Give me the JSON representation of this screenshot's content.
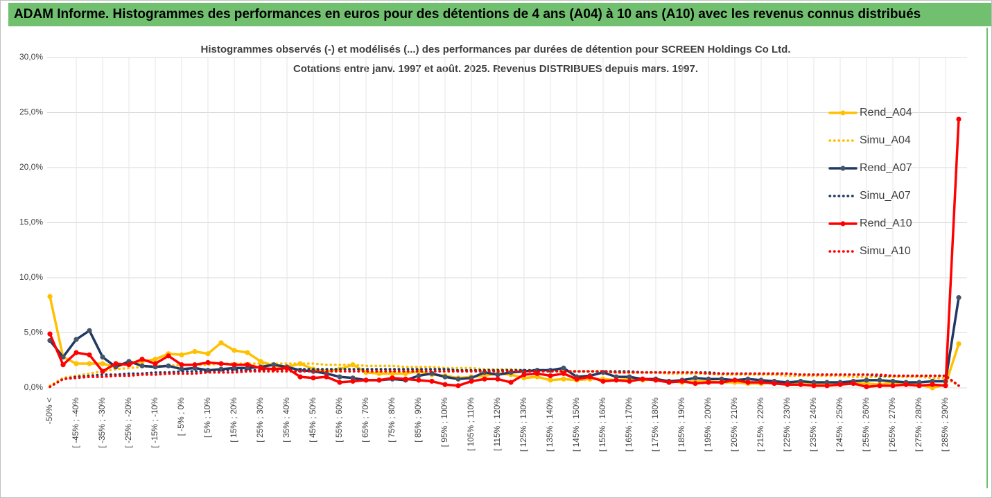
{
  "chart_data": {
    "type": "line",
    "title": "ADAM Informe. Histogrammes des performances en euros pour des détentions de 4 ans (A04) à 10 ans (A10) avec les revenus connus distribués",
    "subtitle": [
      "Histogrammes observés (-) et modélisés (...) des performances par durées de détention pour SCREEN Holdings Co Ltd.",
      "Cotations entre janv. 1997 et août. 2025. Revenus DISTRIBUES depuis mars. 1997."
    ],
    "categories": [
      "-50% <",
      null,
      "[ -45% ; -40%",
      null,
      "[ -35% ; -30%",
      null,
      "[ -25% ; -20%",
      null,
      "[ -15% ; -10%",
      null,
      "[ -5% ; 0%",
      null,
      "[ 5% ; 10%",
      null,
      "[ 15% ; 20%",
      null,
      "[ 25% ; 30%",
      null,
      "[ 35% ; 40%",
      null,
      "[ 45% ; 50%",
      null,
      "[ 55% ; 60%",
      null,
      "[ 65% ; 70%",
      null,
      "[ 75% ; 80%",
      null,
      "[ 85% ; 90%",
      null,
      "[ 95% ; 100%",
      null,
      "[ 105% ; 110%",
      null,
      "[ 115% ; 120%",
      null,
      "[ 125% ; 130%",
      null,
      "[ 135% ; 140%",
      null,
      "[ 145% ; 150%",
      null,
      "[ 155% ; 160%",
      null,
      "[ 165% ; 170%",
      null,
      "[ 175% ; 180%",
      null,
      "[ 185% ; 190%",
      null,
      "[ 195% ; 200%",
      null,
      "[ 205% ; 210%",
      null,
      "[ 215% ; 220%",
      null,
      "[ 225% ; 230%",
      null,
      "[ 235% ; 240%",
      null,
      "[ 245% ; 250%",
      null,
      "[ 255% ; 260%",
      null,
      "[ 265% ; 270%",
      null,
      "[ 275% ; 280%",
      null,
      "[ 285% ; 290%",
      null
    ],
    "series": [
      {
        "name": "Rend_A04",
        "color": "#ffc000",
        "style": "solid",
        "values": [
          8.3,
          2.8,
          2.2,
          2.2,
          2.2,
          1.9,
          2.3,
          2.4,
          2.6,
          3.1,
          3.0,
          3.3,
          3.1,
          4.1,
          3.4,
          3.2,
          2.4,
          2.0,
          1.9,
          2.2,
          1.7,
          1.5,
          1.7,
          2.1,
          1.4,
          1.3,
          1.3,
          1.3,
          1.5,
          1.2,
          1.1,
          0.9,
          1.0,
          1.1,
          1.3,
          1.2,
          0.9,
          1.0,
          0.7,
          0.8,
          0.7,
          0.8,
          0.8,
          0.7,
          0.8,
          0.7,
          0.8,
          0.6,
          0.5,
          0.6,
          0.6,
          0.5,
          0.5,
          0.4,
          0.4,
          0.5,
          0.4,
          0.4,
          0.3,
          0.3,
          0.3,
          0.4,
          0.4,
          0.3,
          0.5,
          0.3,
          0.3,
          0.0,
          0.3,
          4.0
        ]
      },
      {
        "name": "Simu_A04",
        "color": "#ffc000",
        "style": "dotted",
        "values": [
          0.2,
          0.9,
          1.1,
          1.3,
          1.5,
          1.7,
          1.8,
          1.9,
          2.0,
          2.0,
          2.1,
          2.1,
          2.1,
          2.2,
          2.2,
          2.2,
          2.2,
          2.2,
          2.2,
          2.2,
          2.2,
          2.1,
          2.1,
          2.1,
          2.0,
          2.0,
          2.0,
          1.9,
          1.9,
          1.9,
          1.8,
          1.8,
          1.8,
          1.7,
          1.7,
          1.7,
          1.6,
          1.6,
          1.6,
          1.5,
          1.5,
          1.5,
          1.5,
          1.4,
          1.4,
          1.4,
          1.4,
          1.3,
          1.3,
          1.3,
          1.3,
          1.2,
          1.2,
          1.2,
          1.2,
          1.2,
          1.1,
          1.1,
          1.1,
          1.1,
          1.1,
          1.0,
          1.0,
          1.0,
          1.0,
          1.0,
          1.0,
          0.9,
          0.9,
          0.2
        ]
      },
      {
        "name": "Rend_A07",
        "color": "#1f3864",
        "style": "solid",
        "values": [
          4.3,
          2.8,
          4.4,
          5.2,
          2.8,
          1.9,
          2.4,
          2.0,
          1.9,
          2.0,
          1.7,
          1.8,
          1.6,
          1.7,
          1.8,
          1.8,
          1.9,
          2.1,
          1.9,
          1.6,
          1.5,
          1.3,
          1.0,
          0.9,
          0.7,
          0.7,
          0.8,
          0.7,
          1.1,
          1.3,
          1.0,
          0.8,
          0.9,
          1.4,
          1.2,
          1.4,
          1.5,
          1.6,
          1.6,
          1.8,
          1.0,
          1.1,
          1.4,
          1.0,
          1.0,
          0.8,
          0.8,
          0.6,
          0.7,
          0.9,
          0.8,
          0.8,
          0.7,
          0.8,
          0.7,
          0.6,
          0.5,
          0.6,
          0.5,
          0.5,
          0.5,
          0.6,
          0.7,
          0.7,
          0.6,
          0.5,
          0.5,
          0.6,
          0.6,
          8.2
        ]
      },
      {
        "name": "Simu_A07",
        "color": "#1f3864",
        "style": "dotted",
        "values": [
          0.1,
          0.8,
          1.0,
          1.1,
          1.2,
          1.2,
          1.3,
          1.3,
          1.4,
          1.4,
          1.5,
          1.5,
          1.5,
          1.6,
          1.6,
          1.6,
          1.6,
          1.7,
          1.7,
          1.7,
          1.7,
          1.7,
          1.7,
          1.7,
          1.7,
          1.7,
          1.7,
          1.7,
          1.7,
          1.7,
          1.7,
          1.6,
          1.6,
          1.6,
          1.6,
          1.6,
          1.6,
          1.6,
          1.6,
          1.5,
          1.5,
          1.5,
          1.5,
          1.5,
          1.5,
          1.4,
          1.4,
          1.4,
          1.4,
          1.4,
          1.4,
          1.3,
          1.3,
          1.3,
          1.3,
          1.3,
          1.3,
          1.2,
          1.2,
          1.2,
          1.2,
          1.2,
          1.2,
          1.1,
          1.1,
          1.1,
          1.1,
          1.1,
          1.1,
          0.2
        ]
      },
      {
        "name": "Rend_A10",
        "color": "#ff0000",
        "style": "solid",
        "values": [
          4.9,
          2.1,
          3.2,
          3.0,
          1.5,
          2.2,
          2.1,
          2.6,
          2.2,
          2.9,
          2.1,
          2.1,
          2.3,
          2.2,
          2.1,
          2.1,
          1.8,
          1.7,
          1.8,
          1.0,
          0.9,
          1.0,
          0.5,
          0.6,
          0.7,
          0.7,
          0.9,
          0.8,
          0.7,
          0.6,
          0.3,
          0.2,
          0.6,
          0.8,
          0.8,
          0.5,
          1.2,
          1.3,
          1.1,
          1.3,
          0.8,
          1.0,
          0.6,
          0.7,
          0.6,
          0.8,
          0.7,
          0.5,
          0.6,
          0.4,
          0.5,
          0.5,
          0.7,
          0.5,
          0.5,
          0.4,
          0.3,
          0.3,
          0.2,
          0.2,
          0.3,
          0.4,
          0.1,
          0.2,
          0.2,
          0.3,
          0.2,
          0.3,
          0.2,
          24.4
        ]
      },
      {
        "name": "Simu_A10",
        "color": "#ff0000",
        "style": "dotted",
        "values": [
          0.1,
          0.8,
          0.9,
          1.0,
          1.0,
          1.1,
          1.1,
          1.2,
          1.2,
          1.3,
          1.3,
          1.3,
          1.4,
          1.4,
          1.4,
          1.5,
          1.5,
          1.5,
          1.5,
          1.5,
          1.5,
          1.5,
          1.5,
          1.5,
          1.5,
          1.5,
          1.5,
          1.5,
          1.5,
          1.5,
          1.5,
          1.5,
          1.5,
          1.5,
          1.5,
          1.5,
          1.5,
          1.5,
          1.5,
          1.5,
          1.5,
          1.5,
          1.5,
          1.4,
          1.4,
          1.4,
          1.4,
          1.4,
          1.4,
          1.4,
          1.3,
          1.3,
          1.3,
          1.3,
          1.3,
          1.3,
          1.3,
          1.2,
          1.2,
          1.2,
          1.2,
          1.2,
          1.2,
          1.2,
          1.1,
          1.1,
          1.1,
          1.1,
          1.1,
          0.2
        ]
      }
    ],
    "ylim": [
      0,
      30
    ],
    "yticks": [
      {
        "value": 0,
        "label": "0,0%"
      },
      {
        "value": 5,
        "label": "5,0%"
      },
      {
        "value": 10,
        "label": "10,0%"
      },
      {
        "value": 15,
        "label": "15,0%"
      },
      {
        "value": 20,
        "label": "20,0%"
      },
      {
        "value": 25,
        "label": "25,0%"
      },
      {
        "value": 30,
        "label": "30,0%"
      }
    ],
    "grid": true,
    "legend": "right"
  }
}
